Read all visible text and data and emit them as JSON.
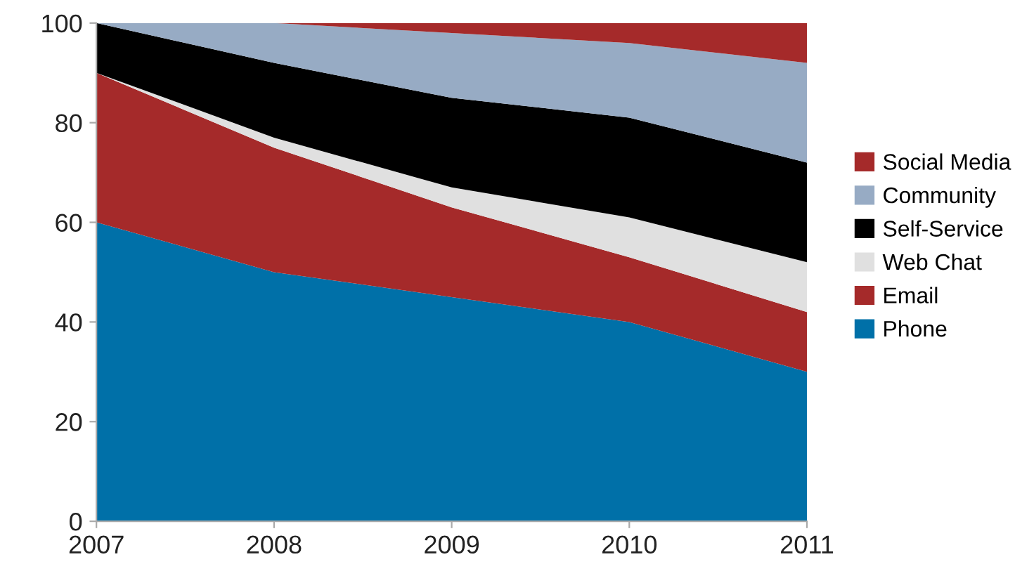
{
  "chart_data": {
    "type": "area",
    "stacked": true,
    "categories": [
      "2007",
      "2008",
      "2009",
      "2010",
      "2011"
    ],
    "series": [
      {
        "name": "Phone",
        "color": "#0070a8",
        "values": [
          60,
          50,
          45,
          40,
          30
        ]
      },
      {
        "name": "Email",
        "color": "#a52a2a",
        "values": [
          30,
          25,
          18,
          13,
          12
        ]
      },
      {
        "name": "Web Chat",
        "color": "#e0e0e0",
        "values": [
          0,
          2,
          4,
          8,
          10
        ]
      },
      {
        "name": "Self-Service",
        "color": "#000000",
        "values": [
          10,
          15,
          18,
          20,
          20
        ]
      },
      {
        "name": "Community",
        "color": "#97abc4",
        "values": [
          0,
          8,
          13,
          15,
          20
        ]
      },
      {
        "name": "Social Media",
        "color": "#a52a2a",
        "values": [
          0,
          0,
          2,
          4,
          8
        ]
      }
    ],
    "ylim": [
      0,
      100
    ],
    "yticks": [
      0,
      20,
      40,
      60,
      80,
      100
    ],
    "grid": false,
    "legend": "right"
  }
}
